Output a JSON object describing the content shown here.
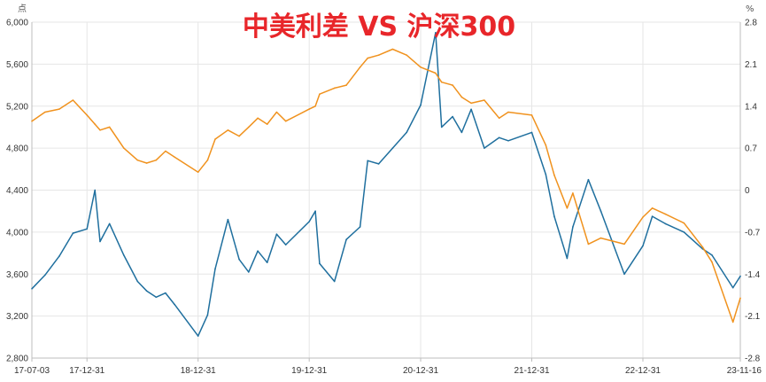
{
  "chart_data": {
    "type": "line",
    "title": "中美利差  VS 沪深300",
    "title_color": "#e8262a",
    "left_unit": "点",
    "right_unit": "%",
    "grid": true,
    "legend": "none",
    "x_axis": {
      "range": [
        "2017-07-03",
        "2023-11-16"
      ],
      "tick_dates": [
        "2017-07-03",
        "2017-12-31",
        "2018-12-31",
        "2019-12-31",
        "2020-12-31",
        "2021-12-31",
        "2022-12-31",
        "2023-11-16"
      ],
      "tick_labels": [
        "17-07-03",
        "17-12-31",
        "18-12-31",
        "19-12-31",
        "20-12-31",
        "21-12-31",
        "22-12-31",
        "23-11-16"
      ]
    },
    "y_left": {
      "range": [
        2800,
        6000
      ],
      "ticks": [
        2800,
        3200,
        3600,
        4000,
        4400,
        4800,
        5200,
        5600,
        6000
      ],
      "tick_labels": [
        "2,800",
        "3,200",
        "3,600",
        "4,000",
        "4,400",
        "4,800",
        "5,200",
        "5,600",
        "6,000"
      ]
    },
    "y_right": {
      "range": [
        -2.8,
        2.8
      ],
      "ticks": [
        -2.8,
        -2.1,
        -1.4,
        -0.7,
        0,
        0.7,
        1.4,
        2.1,
        2.8
      ],
      "tick_labels": [
        "-2.8",
        "-2.1",
        "-1.4",
        "-0.7",
        "0",
        "0.7",
        "1.4",
        "2.1",
        "2.8"
      ]
    },
    "series": [
      {
        "axis": "left",
        "color": "#1f6f9e",
        "x": [
          "2017-07-03",
          "2017-08-15",
          "2017-10-01",
          "2017-11-15",
          "2017-12-31",
          "2018-01-26",
          "2018-02-12",
          "2018-03-15",
          "2018-05-01",
          "2018-06-15",
          "2018-07-15",
          "2018-08-15",
          "2018-09-15",
          "2018-10-15",
          "2018-12-31",
          "2019-01-31",
          "2019-02-25",
          "2019-04-08",
          "2019-05-15",
          "2019-06-15",
          "2019-07-15",
          "2019-08-15",
          "2019-09-15",
          "2019-10-15",
          "2019-12-31",
          "2020-01-20",
          "2020-02-03",
          "2020-03-23",
          "2020-05-01",
          "2020-06-15",
          "2020-07-10",
          "2020-08-15",
          "2020-09-30",
          "2020-11-15",
          "2020-12-31",
          "2021-02-18",
          "2021-03-10",
          "2021-04-15",
          "2021-05-15",
          "2021-06-15",
          "2021-07-28",
          "2021-09-15",
          "2021-10-15",
          "2021-12-31",
          "2022-02-15",
          "2022-03-15",
          "2022-04-26",
          "2022-05-15",
          "2022-07-05",
          "2022-08-15",
          "2022-10-31",
          "2022-12-31",
          "2023-01-31",
          "2023-03-15",
          "2023-05-15",
          "2023-07-15",
          "2023-08-15",
          "2023-10-23",
          "2023-11-16"
        ],
        "y": [
          3460,
          3590,
          3770,
          3990,
          4030,
          4400,
          3910,
          4080,
          3780,
          3530,
          3440,
          3380,
          3420,
          3310,
          3010,
          3210,
          3650,
          4120,
          3740,
          3620,
          3820,
          3710,
          3980,
          3880,
          4100,
          4200,
          3700,
          3530,
          3930,
          4050,
          4680,
          4650,
          4800,
          4950,
          5210,
          5900,
          5000,
          5100,
          4950,
          5170,
          4800,
          4900,
          4870,
          4950,
          4550,
          4150,
          3750,
          4050,
          4500,
          4200,
          3600,
          3870,
          4150,
          4080,
          4000,
          3840,
          3780,
          3470,
          3580
        ]
      },
      {
        "axis": "right",
        "color": "#f0921e",
        "x": [
          "2017-07-03",
          "2017-08-15",
          "2017-10-01",
          "2017-11-15",
          "2017-12-31",
          "2018-01-26",
          "2018-02-12",
          "2018-03-15",
          "2018-05-01",
          "2018-06-15",
          "2018-07-15",
          "2018-08-15",
          "2018-09-15",
          "2018-10-15",
          "2018-12-31",
          "2019-01-31",
          "2019-02-25",
          "2019-04-08",
          "2019-05-15",
          "2019-06-15",
          "2019-07-15",
          "2019-08-15",
          "2019-09-15",
          "2019-10-15",
          "2019-12-31",
          "2020-01-20",
          "2020-02-03",
          "2020-03-23",
          "2020-05-01",
          "2020-06-15",
          "2020-07-10",
          "2020-08-15",
          "2020-09-30",
          "2020-11-15",
          "2020-12-31",
          "2021-02-18",
          "2021-03-10",
          "2021-04-15",
          "2021-05-15",
          "2021-06-15",
          "2021-07-28",
          "2021-09-15",
          "2021-10-15",
          "2021-12-31",
          "2022-02-15",
          "2022-03-15",
          "2022-04-26",
          "2022-05-15",
          "2022-07-05",
          "2022-08-15",
          "2022-10-31",
          "2022-12-31",
          "2023-01-31",
          "2023-03-15",
          "2023-05-15",
          "2023-07-15",
          "2023-08-15",
          "2023-10-23",
          "2023-11-16"
        ],
        "y": [
          1.15,
          1.3,
          1.35,
          1.5,
          1.25,
          1.1,
          1.0,
          1.05,
          0.7,
          0.5,
          0.45,
          0.5,
          0.65,
          0.55,
          0.3,
          0.5,
          0.85,
          1.0,
          0.9,
          1.05,
          1.2,
          1.1,
          1.3,
          1.15,
          1.35,
          1.4,
          1.6,
          1.7,
          1.75,
          2.05,
          2.2,
          2.25,
          2.35,
          2.25,
          2.05,
          1.95,
          1.8,
          1.75,
          1.55,
          1.45,
          1.5,
          1.2,
          1.3,
          1.25,
          0.75,
          0.25,
          -0.3,
          -0.05,
          -0.9,
          -0.8,
          -0.9,
          -0.45,
          -0.3,
          -0.4,
          -0.55,
          -0.95,
          -1.2,
          -2.2,
          -1.8
        ]
      }
    ]
  }
}
